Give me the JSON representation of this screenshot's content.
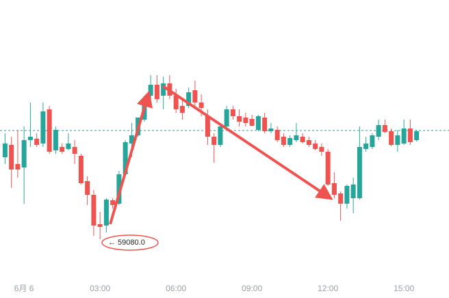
{
  "chart_data": {
    "type": "candlestick",
    "x": [
      -0.75,
      -0.5,
      -0.25,
      0,
      0.25,
      0.5,
      0.75,
      1,
      1.25,
      1.5,
      1.75,
      2,
      2.25,
      2.5,
      2.75,
      3,
      3.25,
      3.5,
      3.75,
      4,
      4.25,
      4.5,
      4.75,
      5,
      5.25,
      5.5,
      5.75,
      6,
      6.25,
      6.5,
      6.75,
      7,
      7.25,
      7.5,
      7.75,
      8,
      8.25,
      8.5,
      8.75,
      9,
      9.25,
      9.5,
      9.75,
      10,
      10.25,
      10.5,
      10.75,
      11,
      11.25,
      11.5,
      11.75,
      12,
      12.25,
      12.5,
      12.75,
      13,
      13.25,
      13.5,
      13.75,
      14,
      14.25,
      14.5,
      14.75,
      15,
      15.25,
      15.5
    ],
    "open": [
      59680,
      59770,
      59630,
      59605,
      59805,
      59815,
      59780,
      60030,
      59730,
      59755,
      59740,
      59755,
      59690,
      59505,
      59405,
      59190,
      59180,
      59365,
      59340,
      59555,
      59780,
      59840,
      59955,
      60130,
      60210,
      60130,
      60220,
      60130,
      60055,
      60055,
      60170,
      60080,
      59980,
      59830,
      59770,
      59905,
      60030,
      59980,
      59970,
      59960,
      59880,
      59970,
      59870,
      59880,
      59830,
      59770,
      59805,
      59830,
      59805,
      59780,
      59755,
      59720,
      59490,
      59415,
      59340,
      59380,
      59380,
      59740,
      59755,
      59830,
      59915,
      59870,
      59770,
      59780,
      59890,
      59805
    ],
    "high": [
      59855,
      59830,
      59880,
      59905,
      60080,
      59855,
      60080,
      60055,
      59905,
      59780,
      59855,
      59805,
      59705,
      59540,
      59440,
      59280,
      59380,
      59380,
      59580,
      59805,
      59930,
      59955,
      60130,
      60280,
      60280,
      60270,
      60280,
      60180,
      60105,
      60190,
      60240,
      60140,
      60030,
      59855,
      59930,
      60055,
      60055,
      60030,
      60005,
      59990,
      59990,
      60005,
      59930,
      59905,
      59855,
      59840,
      59930,
      59855,
      59830,
      59805,
      59780,
      59740,
      59570,
      59430,
      59480,
      59530,
      59905,
      59830,
      59855,
      59955,
      59955,
      59890,
      59880,
      59955,
      59955,
      59880
    ],
    "low": [
      59630,
      59455,
      59530,
      59340,
      59755,
      59755,
      59755,
      59705,
      59705,
      59705,
      59730,
      59630,
      59480,
      59330,
      59105,
      59080,
      59130,
      59305,
      59330,
      59540,
      59680,
      59830,
      59940,
      60080,
      60080,
      60030,
      60105,
      60005,
      59955,
      60040,
      60055,
      59980,
      59770,
      59640,
      59755,
      59880,
      59955,
      59905,
      59905,
      59905,
      59870,
      59855,
      59855,
      59790,
      59755,
      59755,
      59790,
      59780,
      59755,
      59730,
      59690,
      59470,
      59380,
      59215,
      59305,
      59270,
      59370,
      59720,
      59740,
      59805,
      59855,
      59760,
      59720,
      59770,
      59770,
      59795
    ],
    "close": [
      59780,
      59590,
      59590,
      59805,
      59830,
      59770,
      60015,
      59720,
      59880,
      59720,
      59780,
      59705,
      59490,
      59405,
      59180,
      59170,
      59370,
      59330,
      59555,
      59790,
      59840,
      59970,
      60105,
      60210,
      60105,
      60220,
      60130,
      60030,
      60005,
      60155,
      60080,
      60040,
      59830,
      59770,
      59905,
      60030,
      59980,
      59940,
      59930,
      59910,
      59980,
      59870,
      59890,
      59805,
      59770,
      59820,
      59840,
      59790,
      59770,
      59740,
      59720,
      59480,
      59405,
      59340,
      59470,
      59480,
      59755,
      59780,
      59840,
      59915,
      59865,
      59770,
      59840,
      59890,
      59790,
      59870
    ],
    "up_color": "#26a69a",
    "down_color": "#ef5350",
    "price_line": 59875,
    "xlim": [
      -0.95,
      16.78
    ],
    "ylim": [
      58830,
      60830
    ],
    "xticks": [
      {
        "value": 0,
        "label": "6月 6"
      },
      {
        "value": 3,
        "label": "03:00"
      },
      {
        "value": 6,
        "label": "06:00"
      },
      {
        "value": 9,
        "label": "09:00"
      },
      {
        "value": 12,
        "label": "12:00"
      },
      {
        "value": 15,
        "label": "15:00"
      }
    ],
    "annotation": "← 59080.0"
  }
}
